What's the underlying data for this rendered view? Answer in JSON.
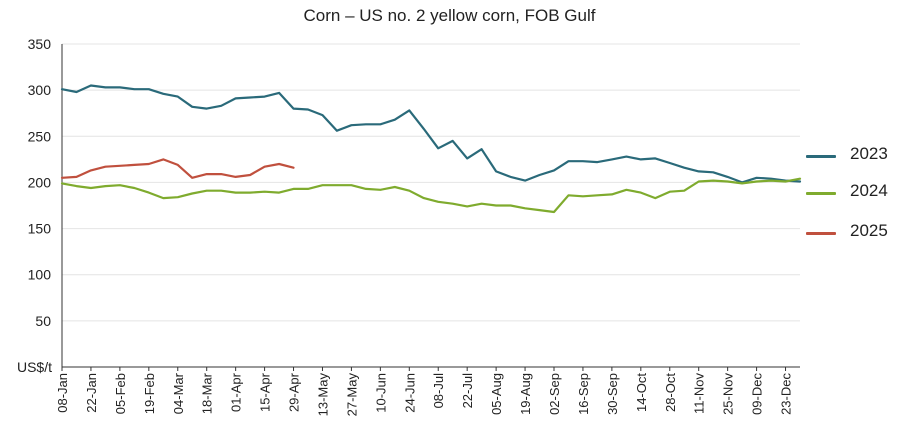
{
  "chart_data": {
    "type": "line",
    "title": "Corn – US no. 2 yellow corn, FOB Gulf",
    "ylabel": "US$/t",
    "xlabel": "",
    "ylim": [
      0,
      350
    ],
    "yticks": [
      350,
      300,
      250,
      200,
      150,
      100,
      50
    ],
    "grid": true,
    "legend_position": "right",
    "x_ticks": [
      "08-Jan",
      "22-Jan",
      "05-Feb",
      "19-Feb",
      "04-Mar",
      "18-Mar",
      "01-Apr",
      "15-Apr",
      "29-Apr",
      "13-May",
      "27-May",
      "10-Jun",
      "24-Jun",
      "08-Jul",
      "22-Jul",
      "05-Aug",
      "19-Aug",
      "02-Sep",
      "16-Sep",
      "30-Sep",
      "14-Oct",
      "28-Oct",
      "11-Nov",
      "25-Nov",
      "09-Dec",
      "23-Dec"
    ],
    "series": [
      {
        "name": "2023",
        "color": "#2a6a7a",
        "values": [
          301,
          298,
          305,
          303,
          303,
          301,
          301,
          296,
          293,
          282,
          280,
          283,
          291,
          292,
          293,
          297,
          280,
          279,
          273,
          256,
          262,
          263,
          263,
          268,
          278,
          258,
          237,
          245,
          226,
          236,
          212,
          206,
          202,
          208,
          213,
          223,
          223,
          222,
          225,
          228,
          225,
          226,
          221,
          216,
          212,
          211,
          206,
          200,
          205,
          204,
          202,
          201
        ]
      },
      {
        "name": "2024",
        "color": "#7fab2e",
        "values": [
          199,
          196,
          194,
          196,
          197,
          194,
          189,
          183,
          184,
          188,
          191,
          191,
          189,
          189,
          190,
          189,
          193,
          193,
          197,
          197,
          197,
          193,
          192,
          195,
          191,
          183,
          179,
          177,
          174,
          177,
          175,
          175,
          172,
          170,
          168,
          186,
          185,
          186,
          187,
          192,
          189,
          183,
          190,
          191,
          201,
          202,
          201,
          199,
          201,
          202,
          201,
          204
        ]
      },
      {
        "name": "2025",
        "color": "#c0503e",
        "values": [
          205,
          206,
          213,
          217,
          218,
          219,
          220,
          225,
          219,
          205,
          209,
          209,
          206,
          208,
          217,
          220,
          216
        ]
      }
    ]
  }
}
